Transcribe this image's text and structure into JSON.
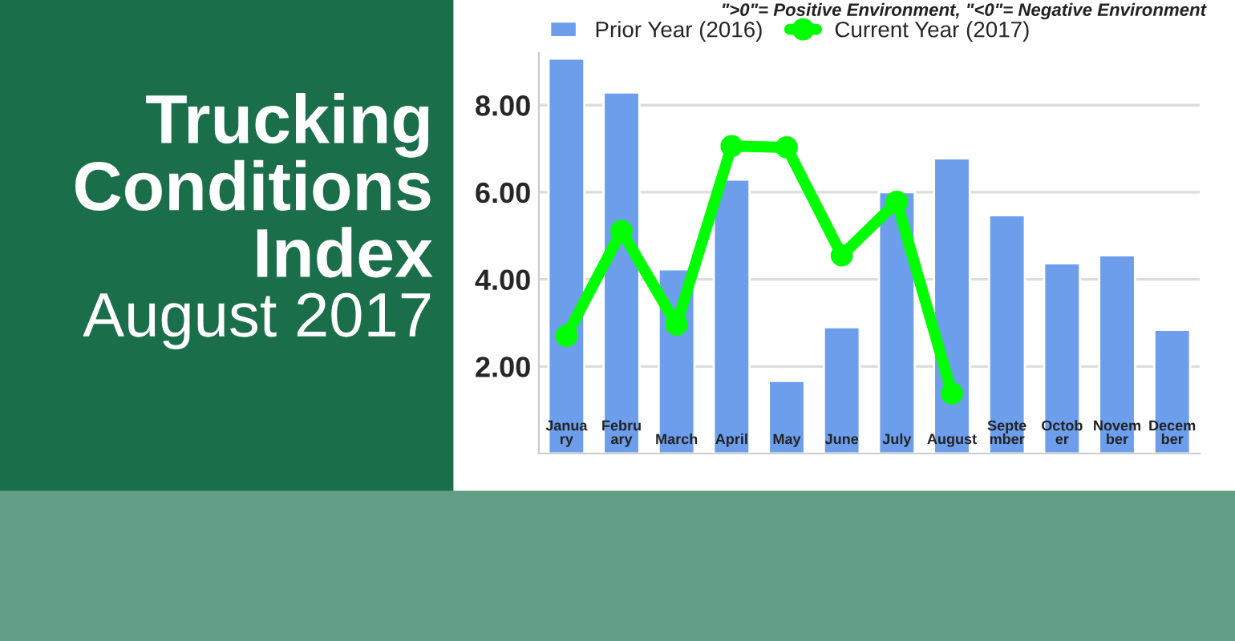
{
  "chart_data": {
    "type": "bar",
    "title": "Trucking Conditions Index",
    "subtitle": "August 2017",
    "annotations": [
      "\">0\"= Positive Environment, \"<0\"= Negative Environment"
    ],
    "categories": [
      "January",
      "February",
      "March",
      "April",
      "May",
      "June",
      "July",
      "August",
      "September",
      "October",
      "November",
      "December"
    ],
    "series": [
      {
        "name": "Prior Year (2016)",
        "color": "#6d9eeb",
        "values": [
          9.07,
          8.29,
          4.23,
          6.29,
          1.67,
          2.9,
          6.0,
          6.78,
          5.47,
          4.37,
          4.55,
          2.84
        ]
      },
      {
        "name": "Current Year (2017)",
        "type": "line",
        "color": "#00ff00",
        "marker": "circle",
        "values": [
          2.7,
          5.11,
          2.96,
          7.06,
          7.03,
          4.55,
          5.78,
          1.38,
          null,
          null,
          null,
          null
        ]
      }
    ],
    "ylim": [
      0,
      9.2
    ],
    "yticks": [
      {
        "value": 2,
        "label": "2.00"
      },
      {
        "value": 4,
        "label": "4.00"
      },
      {
        "value": 6,
        "label": "6.00"
      },
      {
        "value": 8,
        "label": "8.00"
      }
    ],
    "grid": "y",
    "legend": "top left"
  }
}
